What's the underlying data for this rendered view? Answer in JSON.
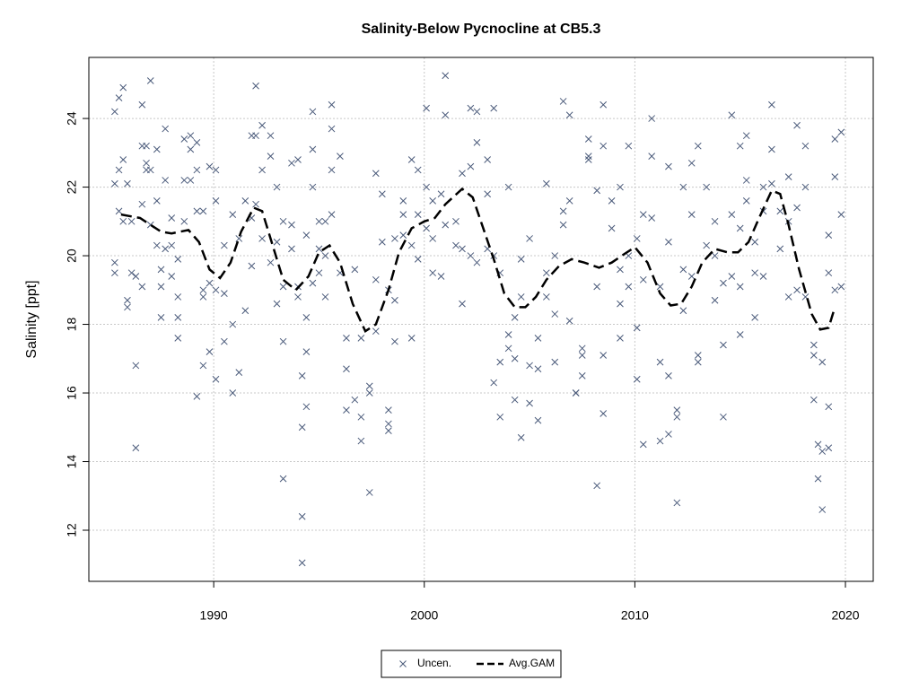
{
  "chart_data": {
    "type": "scatter",
    "title": "Salinity-Below Pycnocline at CB5.3",
    "y_label": "Salinity [ppt]",
    "xlim": [
      1984.07,
      2021.32
    ],
    "xticks": [
      1990,
      2000,
      2010,
      2020
    ],
    "ylim": [
      10.51,
      25.78
    ],
    "yticks": [
      12,
      14,
      16,
      18,
      20,
      22,
      24
    ],
    "grid": true,
    "legend_position": "bottom",
    "series": [
      {
        "name": "Uncen.",
        "color": "#4a5a7a",
        "x": [
          1985.3,
          1985.3,
          1985.3,
          1985.3,
          1985.5,
          1985.5,
          1985.5,
          1985.7,
          1985.7,
          1985.7,
          1985.9,
          1985.9,
          1985.9,
          1986.1,
          1986.1,
          1986.3,
          1986.3,
          1986.3,
          1986.6,
          1986.6,
          1986.6,
          1986.6,
          1986.8,
          1986.8,
          1986.8,
          1987.0,
          1987.0,
          1987.0,
          1987.3,
          1987.3,
          1987.3,
          1987.5,
          1987.5,
          1987.5,
          1987.7,
          1987.7,
          1987.7,
          1988.0,
          1988.0,
          1988.0,
          1988.3,
          1988.3,
          1988.3,
          1988.3,
          1988.6,
          1988.6,
          1988.6,
          1988.9,
          1988.9,
          1988.9,
          1989.2,
          1989.2,
          1989.2,
          1989.2,
          1989.5,
          1989.5,
          1989.5,
          1989.5,
          1989.8,
          1989.8,
          1989.8,
          1990.1,
          1990.1,
          1990.1,
          1990.1,
          1990.5,
          1990.5,
          1990.5,
          1990.9,
          1990.9,
          1990.9,
          1991.2,
          1991.2,
          1991.5,
          1991.5,
          1991.8,
          1991.8,
          1991.8,
          1992.0,
          1992.0,
          1992.0,
          1992.3,
          1992.3,
          1992.3,
          1992.7,
          1992.7,
          1992.7,
          1993.0,
          1993.0,
          1993.0,
          1993.3,
          1993.3,
          1993.3,
          1993.3,
          1993.7,
          1993.7,
          1993.7,
          1994.0,
          1994.0,
          1994.0,
          1994.2,
          1994.2,
          1994.2,
          1994.2,
          1994.4,
          1994.4,
          1994.4,
          1994.4,
          1994.7,
          1994.7,
          1994.7,
          1994.7,
          1995.0,
          1995.0,
          1995.0,
          1995.3,
          1995.3,
          1995.3,
          1995.6,
          1995.6,
          1995.6,
          1995.6,
          1996.0,
          1996.0,
          1996.3,
          1996.3,
          1996.3,
          1996.7,
          1996.7,
          1997.0,
          1997.0,
          1997.0,
          1997.4,
          1997.4,
          1997.4,
          1997.7,
          1997.7,
          1997.7,
          1998.0,
          1998.0,
          1998.3,
          1998.3,
          1998.3,
          1998.3,
          1998.6,
          1998.6,
          1998.6,
          1999.0,
          1999.0,
          1999.0,
          1999.4,
          1999.4,
          1999.4,
          1999.7,
          1999.7,
          1999.7,
          2000.1,
          2000.1,
          2000.1,
          2000.4,
          2000.4,
          2000.4,
          2000.8,
          2000.8,
          2001.0,
          2001.0,
          2001.0,
          2001.5,
          2001.5,
          2001.8,
          2001.8,
          2001.8,
          2002.2,
          2002.2,
          2002.2,
          2002.5,
          2002.5,
          2002.5,
          2003.0,
          2003.0,
          2003.0,
          2003.3,
          2003.3,
          2003.3,
          2003.6,
          2003.6,
          2003.6,
          2004.0,
          2004.0,
          2004.0,
          2004.3,
          2004.3,
          2004.3,
          2004.6,
          2004.6,
          2004.6,
          2005.0,
          2005.0,
          2005.0,
          2005.4,
          2005.4,
          2005.4,
          2005.8,
          2005.8,
          2005.8,
          2006.2,
          2006.2,
          2006.2,
          2006.6,
          2006.6,
          2006.6,
          2006.9,
          2006.9,
          2006.9,
          2007.2,
          2007.2,
          2007.5,
          2007.5,
          2007.5,
          2007.8,
          2007.8,
          2007.8,
          2008.2,
          2008.2,
          2008.2,
          2008.5,
          2008.5,
          2008.5,
          2008.5,
          2008.9,
          2008.9,
          2009.3,
          2009.3,
          2009.3,
          2009.3,
          2009.7,
          2009.7,
          2009.7,
          2010.1,
          2010.1,
          2010.1,
          2010.4,
          2010.4,
          2010.4,
          2010.8,
          2010.8,
          2010.8,
          2011.2,
          2011.2,
          2011.2,
          2011.6,
          2011.6,
          2011.6,
          2011.6,
          2012.0,
          2012.0,
          2012.0,
          2012.3,
          2012.3,
          2012.3,
          2012.7,
          2012.7,
          2012.7,
          2013.0,
          2013.0,
          2013.0,
          2013.4,
          2013.4,
          2013.8,
          2013.8,
          2013.8,
          2014.2,
          2014.2,
          2014.2,
          2014.6,
          2014.6,
          2014.6,
          2015.0,
          2015.0,
          2015.0,
          2015.0,
          2015.3,
          2015.3,
          2015.3,
          2015.7,
          2015.7,
          2015.7,
          2016.1,
          2016.1,
          2016.1,
          2016.5,
          2016.5,
          2016.5,
          2016.9,
          2016.9,
          2017.3,
          2017.3,
          2017.3,
          2017.7,
          2017.7,
          2017.7,
          2018.1,
          2018.1,
          2018.1,
          2018.5,
          2018.5,
          2018.5,
          2018.7,
          2018.7,
          2018.9,
          2018.9,
          2018.9,
          2019.2,
          2019.2,
          2019.2,
          2019.2,
          2019.5,
          2019.5,
          2019.5,
          2019.8,
          2019.8,
          2019.8
        ],
        "values": [
          22.1,
          19.8,
          19.5,
          24.2,
          24.6,
          22.5,
          21.3,
          24.9,
          22.8,
          21.0,
          18.7,
          18.5,
          22.1,
          19.5,
          21.0,
          16.8,
          14.4,
          19.4,
          19.1,
          21.5,
          23.2,
          24.4,
          22.5,
          22.7,
          23.2,
          25.1,
          20.9,
          22.5,
          20.3,
          23.1,
          21.6,
          18.2,
          19.6,
          19.1,
          23.7,
          22.2,
          20.2,
          21.1,
          20.3,
          19.4,
          18.2,
          17.6,
          19.9,
          18.8,
          23.4,
          22.2,
          21.0,
          23.5,
          23.1,
          22.2,
          23.3,
          22.5,
          21.3,
          15.9,
          18.8,
          16.8,
          21.3,
          19.0,
          22.6,
          19.2,
          17.2,
          21.6,
          22.5,
          16.4,
          19.0,
          17.5,
          18.9,
          20.3,
          16.0,
          18.0,
          21.2,
          16.6,
          20.5,
          18.4,
          21.6,
          23.5,
          21.1,
          19.7,
          24.95,
          23.5,
          21.5,
          23.8,
          22.5,
          20.5,
          23.5,
          22.9,
          19.8,
          22.0,
          20.4,
          18.6,
          17.5,
          13.5,
          19.1,
          21.0,
          20.2,
          22.7,
          20.9,
          22.8,
          19.1,
          18.8,
          16.5,
          15.0,
          12.4,
          11.05,
          17.2,
          18.2,
          15.6,
          20.6,
          22.0,
          24.2,
          19.2,
          23.1,
          20.2,
          19.5,
          21.0,
          21.0,
          20.0,
          18.8,
          24.4,
          23.7,
          22.5,
          21.2,
          22.9,
          19.5,
          16.7,
          15.5,
          17.6,
          15.8,
          19.6,
          15.3,
          14.6,
          17.6,
          16.0,
          13.1,
          16.2,
          22.4,
          19.3,
          17.8,
          20.4,
          21.8,
          15.5,
          15.1,
          14.9,
          19.0,
          18.7,
          17.5,
          20.5,
          21.6,
          20.6,
          21.2,
          22.8,
          17.6,
          20.3,
          22.5,
          21.2,
          19.9,
          24.3,
          22.0,
          20.8,
          21.6,
          19.5,
          20.5,
          21.8,
          19.4,
          25.25,
          24.1,
          20.9,
          20.3,
          21.0,
          22.4,
          18.6,
          20.2,
          24.3,
          22.6,
          20.0,
          24.2,
          23.3,
          19.8,
          22.8,
          21.8,
          20.2,
          24.3,
          20.0,
          16.3,
          19.5,
          15.3,
          16.9,
          22.0,
          17.3,
          17.7,
          18.2,
          15.8,
          17.0,
          19.9,
          14.7,
          18.8,
          20.5,
          16.8,
          15.7,
          17.6,
          15.2,
          16.7,
          22.1,
          18.8,
          19.5,
          20.0,
          16.9,
          18.3,
          24.5,
          20.9,
          21.3,
          24.1,
          21.6,
          18.1,
          16.0,
          16.0,
          17.3,
          17.1,
          16.5,
          23.4,
          22.8,
          22.9,
          21.9,
          19.1,
          13.3,
          24.4,
          15.4,
          23.2,
          17.1,
          21.6,
          20.8,
          22.0,
          19.6,
          17.6,
          18.6,
          23.2,
          20.0,
          19.1,
          20.5,
          16.4,
          17.9,
          14.5,
          19.3,
          21.2,
          22.9,
          24.0,
          21.1,
          19.1,
          16.9,
          14.6,
          20.4,
          16.5,
          14.8,
          22.6,
          12.8,
          15.3,
          15.5,
          18.4,
          22.0,
          19.6,
          22.7,
          21.2,
          19.4,
          17.1,
          16.9,
          23.2,
          22.0,
          20.3,
          21.0,
          20.0,
          18.7,
          19.2,
          17.4,
          15.3,
          24.1,
          21.2,
          19.4,
          23.2,
          20.8,
          19.1,
          17.7,
          23.5,
          21.6,
          22.2,
          18.2,
          19.5,
          20.4,
          22.0,
          21.3,
          19.4,
          24.4,
          23.1,
          22.1,
          20.2,
          21.3,
          18.8,
          22.3,
          21.0,
          23.8,
          21.4,
          19.0,
          23.2,
          22.0,
          18.8,
          17.4,
          17.1,
          15.8,
          13.5,
          14.5,
          14.3,
          16.9,
          12.6,
          14.4,
          19.5,
          15.6,
          20.6,
          23.4,
          22.3,
          19.0,
          23.6,
          21.2,
          19.1
        ]
      },
      {
        "name": "Avg.GAM",
        "color": "#000000",
        "line_style": "dashed",
        "x": [
          1985.6,
          1986.5,
          1987,
          1987.5,
          1988,
          1988.8,
          1989.3,
          1989.8,
          1990.3,
          1990.8,
          1991.3,
          1991.9,
          1992.3,
          1992.8,
          1993.3,
          1993.9,
          1994.5,
          1995,
          1995.5,
          1996,
          1996.6,
          1997.2,
          1997.7,
          1998.3,
          1998.8,
          1999.4,
          2000,
          2000.5,
          2001,
          2001.8,
          2002.3,
          2002.8,
          2003.3,
          2003.8,
          2004.3,
          2004.8,
          2005.3,
          2005.8,
          2006.4,
          2007,
          2007.6,
          2008.3,
          2008.9,
          2009.5,
          2010,
          2010.6,
          2011.2,
          2011.7,
          2012.2,
          2012.7,
          2013.2,
          2013.8,
          2014.4,
          2014.9,
          2015.4,
          2015.9,
          2016.5,
          2016.9,
          2017.3,
          2017.8,
          2018.4,
          2018.8,
          2019.2,
          2019.5
        ],
        "values": [
          21.2,
          21.1,
          20.9,
          20.7,
          20.65,
          20.75,
          20.4,
          19.6,
          19.35,
          19.8,
          20.7,
          21.4,
          21.3,
          20.3,
          19.3,
          19.0,
          19.4,
          20.1,
          20.3,
          19.8,
          18.6,
          17.8,
          18.0,
          19.0,
          20.1,
          20.8,
          21.0,
          21.1,
          21.5,
          21.95,
          21.7,
          20.8,
          19.9,
          18.9,
          18.5,
          18.5,
          18.8,
          19.3,
          19.7,
          19.9,
          19.8,
          19.65,
          19.8,
          20.05,
          20.25,
          19.8,
          18.9,
          18.55,
          18.6,
          19.1,
          19.8,
          20.2,
          20.1,
          20.1,
          20.4,
          21.1,
          21.9,
          21.8,
          20.9,
          19.6,
          18.3,
          17.85,
          17.9,
          18.5
        ]
      }
    ]
  }
}
